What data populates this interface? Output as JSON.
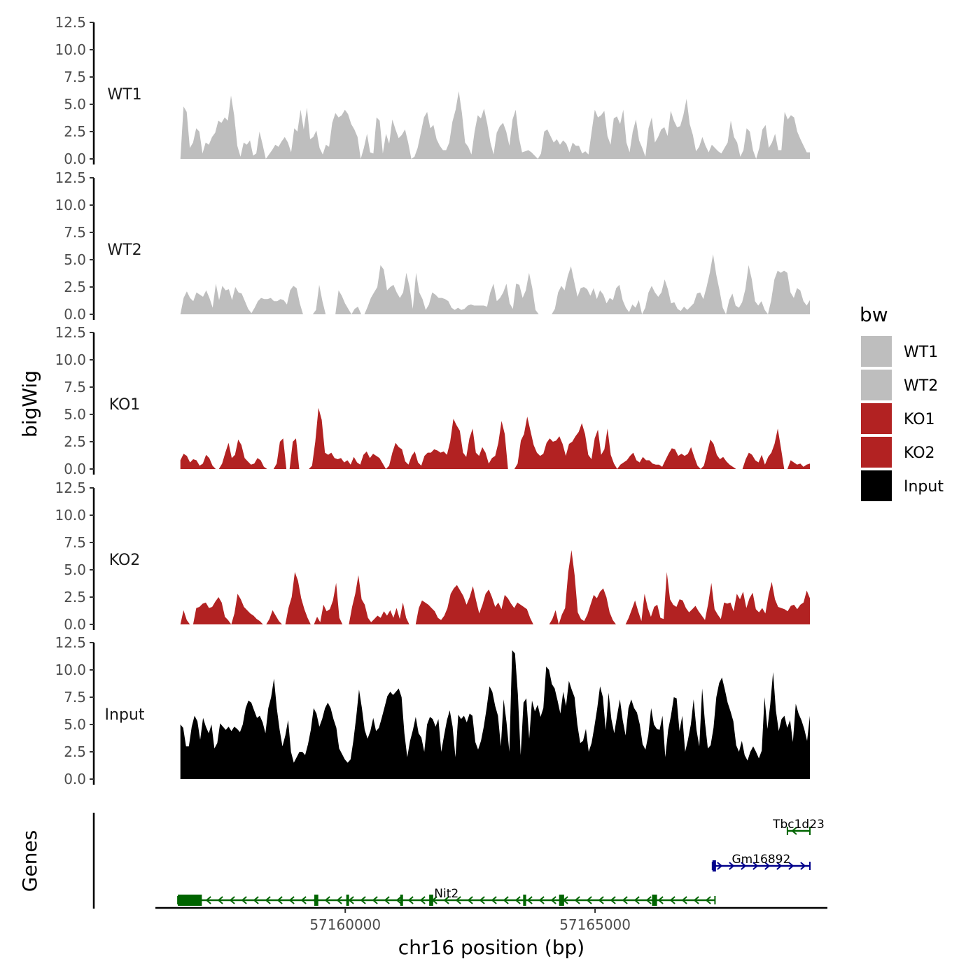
{
  "chart_data": {
    "type": "area",
    "y_axis_title": "bigWig",
    "x_axis_title": "chr16 position (bp)",
    "genes_axis_title": "Genes",
    "y_ticks": [
      "0.0",
      "2.5",
      "5.0",
      "7.5",
      "10.0",
      "12.5"
    ],
    "y_tick_values": [
      0,
      2.5,
      5,
      7.5,
      10,
      12.5
    ],
    "ylim": [
      0,
      12.5
    ],
    "xlim": [
      57156200,
      57169650
    ],
    "x_ticks": [
      {
        "value": 57160000,
        "label": "57160000"
      },
      {
        "value": 57165000,
        "label": "57165000"
      }
    ],
    "data_range": [
      57156700,
      57169300
    ],
    "legend": {
      "title": "bw",
      "entries": [
        {
          "label": "WT1",
          "color": "#bebebe"
        },
        {
          "label": "WT2",
          "color": "#bebebe"
        },
        {
          "label": "KO1",
          "color": "#b22222"
        },
        {
          "label": "KO2",
          "color": "#b22222"
        },
        {
          "label": "Input",
          "color": "#000000"
        }
      ]
    },
    "tracks": [
      {
        "name": "WT1",
        "color": "#bebebe",
        "values": [
          0,
          4.8,
          4.3,
          1,
          1.5,
          2.8,
          2.5,
          0.5,
          1.5,
          1.3,
          2,
          2.4,
          3.5,
          3.3,
          3.8,
          3.5,
          5.8,
          4,
          1.2,
          0.2,
          1.5,
          1.3,
          1.7,
          0.3,
          0.5,
          2.5,
          1.3,
          0,
          0.4,
          0.8,
          1.3,
          1.1,
          1.6,
          2,
          1.5,
          0.6,
          2.8,
          2.5,
          4.5,
          2.7,
          4.7,
          1.8,
          2,
          2.6,
          1,
          0.4,
          1.3,
          1.1,
          3.3,
          4.2,
          3.8,
          4,
          4.5,
          4.1,
          3.2,
          2.7,
          2,
          0,
          1,
          2.3,
          0.6,
          0.5,
          3.8,
          3.5,
          0.5,
          2.3,
          1.4,
          3.6,
          2.7,
          1.9,
          2.2,
          2.7,
          1.5,
          0,
          0.2,
          1,
          2.4,
          3.8,
          4.3,
          2.8,
          3.1,
          1.8,
          1.2,
          0.8,
          0.8,
          1.5,
          3.4,
          4.5,
          6.2,
          4.2,
          1.5,
          1.1,
          0.4,
          2.5,
          4,
          3.7,
          4.6,
          3.2,
          1.5,
          0.4,
          2.4,
          3,
          3.3,
          2.5,
          1.2,
          3.6,
          4.5,
          2,
          0.6,
          0.7,
          0.8,
          0.6,
          0.3,
          0,
          0.5,
          2.5,
          2.7,
          2.1,
          1.5,
          1.8,
          1.3,
          1.7,
          1.4,
          0.6,
          1.5,
          1.2,
          1.2,
          0.5,
          0.7,
          0.4,
          2.5,
          4.5,
          3.8,
          4,
          4.4,
          2.1,
          1.3,
          3.7,
          3.9,
          3.2,
          4.5,
          1.5,
          0.6,
          2.5,
          3.6,
          1.7,
          1,
          0.2,
          2.8,
          3.8,
          1.5,
          2,
          2.7,
          2.9,
          2.1,
          4.4,
          3.5,
          2.9,
          3,
          4,
          5.5,
          3.2,
          2.2,
          0.7,
          1.1,
          2,
          1.2,
          0.6,
          1.3,
          1,
          0.7,
          0.5,
          1,
          1.5,
          3.5,
          2,
          1.5,
          0.2,
          0.8,
          2.8,
          2.5,
          0.8,
          0,
          1,
          2.7,
          3.1,
          1,
          1.5,
          2.3,
          0.8,
          0.8,
          4.3,
          3.6,
          4,
          3.8,
          2.5,
          1.8,
          1.2,
          0.6,
          0.6
        ]
      },
      {
        "name": "WT2",
        "color": "#bebebe",
        "values": [
          0,
          1.5,
          2.1,
          1.5,
          1.2,
          2,
          1.8,
          1.6,
          2.2,
          1.5,
          0.6,
          2.8,
          1.3,
          2.6,
          2.2,
          2.3,
          1.3,
          2.5,
          2,
          1.9,
          1.2,
          0.5,
          0.1,
          0.6,
          1.2,
          1.5,
          1.4,
          1.4,
          1.5,
          1.2,
          1.2,
          1.4,
          1.3,
          0.9,
          2.2,
          2.6,
          2.4,
          1,
          0,
          0,
          0,
          0,
          0.4,
          2.7,
          1.2,
          0,
          0,
          0,
          0,
          2.2,
          1.7,
          1,
          0.5,
          0,
          0.5,
          0.7,
          0,
          0,
          0.7,
          1.5,
          2,
          2.5,
          4.5,
          4.1,
          2.2,
          2.5,
          2.7,
          2,
          1.5,
          2,
          3.8,
          2.5,
          0.5,
          3.8,
          2,
          1.4,
          0.4,
          0.9,
          2,
          1.8,
          1.5,
          1.5,
          1.4,
          1.2,
          0.6,
          0.4,
          0.6,
          0.4,
          0.5,
          0.8,
          0.9,
          0.8,
          0.8,
          0.8,
          0.8,
          0.7,
          2,
          2.8,
          1.2,
          1.5,
          2,
          2.8,
          1,
          0.5,
          2.8,
          2.7,
          1.5,
          2.2,
          3.8,
          2.4,
          0.4,
          0,
          0,
          0,
          0,
          0,
          0.5,
          2,
          2.6,
          2.2,
          3.5,
          4.4,
          3,
          1.6,
          2.4,
          2.5,
          2.3,
          1.7,
          2.4,
          1.4,
          2.2,
          1.8,
          1,
          1.5,
          1.3,
          2.4,
          2.7,
          1.3,
          0.6,
          0.2,
          0.9,
          0.6,
          1.3,
          0,
          0.6,
          2,
          2.6,
          2,
          1.6,
          2,
          3.2,
          2.3,
          1,
          1.1,
          0.5,
          0.3,
          0.7,
          0.4,
          0.7,
          1,
          1.9,
          2,
          1.4,
          2.5,
          3.8,
          5.5,
          3.6,
          2.2,
          0.6,
          0,
          1.3,
          1.9,
          0.8,
          0.6,
          1.1,
          2.3,
          4.5,
          3.2,
          1.2,
          0.8,
          1.2,
          0.4,
          0,
          1.3,
          3.2,
          4,
          3.8,
          4,
          3.8,
          2,
          1.5,
          2.4,
          2.2,
          1.2,
          0.8,
          1.3
        ]
      },
      {
        "name": "KO1",
        "color": "#b22222",
        "values": [
          0.8,
          1.4,
          1.2,
          0.6,
          0.9,
          0.8,
          0.3,
          0.5,
          1.3,
          1,
          0.3,
          0,
          0,
          0.5,
          1.5,
          2.4,
          1,
          1.3,
          2.7,
          2.2,
          1,
          0.7,
          0.4,
          0.5,
          1,
          0.8,
          0.2,
          0,
          0,
          0,
          0.5,
          2.5,
          2.8,
          0,
          0,
          2.5,
          2.8,
          0,
          0,
          0,
          0,
          0.3,
          2.5,
          5.6,
          4.5,
          1.5,
          1.3,
          1.5,
          1,
          0.9,
          1,
          0.6,
          0.8,
          0.4,
          1.1,
          0.6,
          0.4,
          1.3,
          1.6,
          1,
          1.4,
          1.2,
          1,
          0.5,
          0,
          0.3,
          1.5,
          2.4,
          2,
          1.8,
          0.7,
          0.4,
          1.2,
          1.6,
          0.6,
          0.3,
          1.2,
          1.5,
          1.5,
          1.8,
          1.7,
          1.5,
          1.6,
          1.3,
          2.5,
          4.6,
          4,
          3.5,
          1.5,
          1.1,
          2.8,
          3.7,
          1.5,
          1.2,
          2,
          1.5,
          0.5,
          1,
          1.2,
          2.4,
          4.4,
          3.2,
          0,
          0,
          0,
          0.5,
          2.6,
          3.2,
          4.8,
          3.5,
          2.2,
          1.5,
          1.2,
          1.4,
          2.4,
          2.8,
          2.5,
          2.6,
          3,
          2.3,
          1.2,
          2.3,
          2.5,
          3,
          3.4,
          4.2,
          3.2,
          1.3,
          0.9,
          2.8,
          3.6,
          1.3,
          1.8,
          3.7,
          1.3,
          0.5,
          0,
          0.4,
          0.6,
          0.8,
          1.2,
          1.5,
          0.8,
          0.6,
          1.1,
          0.8,
          0.8,
          0.5,
          0.4,
          0.4,
          0.2,
          0.8,
          1.4,
          1.9,
          1.8,
          1.2,
          1.4,
          1.2,
          1.4,
          2,
          1.1,
          0.3,
          0,
          0.3,
          1.5,
          2.7,
          2.3,
          1.3,
          0.9,
          1.1,
          0.7,
          0.4,
          0.2,
          0,
          0,
          0,
          0.9,
          1.5,
          1.3,
          0.8,
          0.6,
          1.3,
          0.4,
          1.1,
          1.5,
          2.3,
          3.7,
          1.9,
          0,
          0,
          0.8,
          0.6,
          0.4,
          0.5,
          0.2,
          0.4,
          0.5
        ]
      },
      {
        "name": "KO2",
        "color": "#b22222",
        "values": [
          0,
          1.3,
          0.4,
          0,
          0,
          1.5,
          1.6,
          1.9,
          2,
          1.5,
          1.6,
          2.1,
          2.5,
          2,
          0.7,
          0.4,
          0,
          1,
          2.8,
          2.3,
          1.6,
          1.3,
          1,
          0.8,
          0.5,
          0.3,
          0,
          0,
          0.5,
          1.3,
          0.8,
          0.3,
          0,
          0,
          1.5,
          2.5,
          4.8,
          4,
          2.4,
          1.4,
          0.6,
          0,
          0,
          0.7,
          0.2,
          1.8,
          1.2,
          1.4,
          2.2,
          3.8,
          0.6,
          0,
          0,
          0,
          1.6,
          2.8,
          4.5,
          2.3,
          1.8,
          0.6,
          0.2,
          0.5,
          0.8,
          0.6,
          1.2,
          0.8,
          1.3,
          0.6,
          1.5,
          0.5,
          2,
          0.6,
          0,
          0,
          0,
          1.5,
          2.2,
          2,
          1.8,
          1.5,
          1.2,
          0.6,
          0.4,
          0.8,
          1.5,
          2.8,
          3.3,
          3.6,
          3.1,
          2.6,
          1.8,
          2.5,
          3.5,
          2.2,
          1,
          1.8,
          2.8,
          3.2,
          2.5,
          1.6,
          2,
          1.4,
          2.7,
          2.4,
          1.9,
          1.5,
          2,
          1.8,
          1.6,
          1.4,
          0.6,
          0,
          0,
          0,
          0,
          0,
          0,
          0.5,
          1.3,
          0,
          0.9,
          1.5,
          4.8,
          6.8,
          4.5,
          1.1,
          0.5,
          0.3,
          0.9,
          1.8,
          2.7,
          2.4,
          3,
          3.3,
          2.5,
          1.1,
          0.4,
          0,
          0,
          0,
          0,
          0.6,
          1.4,
          2.2,
          1.2,
          0.3,
          2.8,
          1.5,
          0.7,
          1.6,
          1.8,
          0.6,
          0.5,
          4.8,
          2.3,
          1.8,
          1.6,
          2.3,
          2.2,
          1.5,
          1.1,
          1.4,
          1.7,
          1.2,
          0.8,
          0.4,
          1.9,
          3.8,
          1.4,
          0.9,
          0.5,
          2,
          1.9,
          2,
          1.2,
          2.8,
          2.3,
          3,
          1.5,
          2.4,
          2.9,
          1.4,
          1.1,
          1.5,
          1,
          2.7,
          3.9,
          2.3,
          1.6,
          1.5,
          1.4,
          1.2,
          1.7,
          1.8,
          1.4,
          1.8,
          2,
          3.1,
          2.4
        ]
      },
      {
        "name": "Input",
        "color": "#000000",
        "values": [
          5,
          4.7,
          3,
          3,
          4.8,
          5.8,
          5.3,
          3.6,
          5.6,
          4.8,
          4.2,
          5,
          2.8,
          3.3,
          5.1,
          4.8,
          4.5,
          4.8,
          4.4,
          4.8,
          4.6,
          4.3,
          5,
          6.5,
          7.2,
          7,
          6.3,
          5.6,
          5.8,
          5.2,
          4.2,
          6.5,
          7.5,
          9.2,
          6.5,
          4.5,
          3,
          4,
          5.4,
          2.5,
          1.5,
          2,
          2.5,
          2.5,
          2.2,
          3.2,
          4.5,
          6.5,
          6,
          4.8,
          5.5,
          6.5,
          7,
          6.5,
          5.5,
          4.7,
          2.8,
          2.3,
          1.8,
          1.5,
          1.8,
          3.5,
          5.7,
          8.2,
          6.5,
          4.5,
          3.7,
          4.4,
          5.6,
          4.4,
          4.7,
          5.6,
          6.6,
          7.6,
          8,
          7.7,
          8,
          8.3,
          7.5,
          4.2,
          2,
          3.5,
          4.5,
          5.7,
          4.2,
          3.8,
          2.5,
          5,
          5.7,
          5.5,
          4.8,
          5.5,
          2.5,
          4,
          5.4,
          6.3,
          4.8,
          2,
          5.9,
          5.5,
          5.8,
          5.2,
          6,
          5.8,
          3.4,
          2.7,
          3.5,
          4.8,
          6.5,
          8.5,
          8,
          6.7,
          5.8,
          3,
          7.3,
          5.2,
          2.5,
          11.8,
          11.5,
          7.8,
          2.2,
          7,
          7.4,
          3.7,
          7.2,
          6.2,
          6.8,
          5.7,
          6.5,
          10.3,
          10,
          8.7,
          8.3,
          7.2,
          6,
          8,
          6.7,
          9,
          8.2,
          7.5,
          5,
          3.3,
          3.5,
          4.6,
          2.5,
          3.3,
          4.8,
          6.5,
          8.5,
          7.5,
          4.5,
          7.9,
          5.5,
          4.2,
          5.8,
          7.3,
          5.4,
          4,
          6.5,
          7.3,
          6.5,
          6.1,
          5,
          3.2,
          2.7,
          4,
          6.5,
          5,
          4.6,
          4.5,
          5.8,
          2,
          4.5,
          5.8,
          7.5,
          7.4,
          4.4,
          5.8,
          2.5,
          3.6,
          5,
          7.3,
          4.5,
          3,
          8.3,
          5.2,
          2.8,
          3.1,
          4.7,
          7.5,
          8.8,
          9.3,
          8.2,
          7,
          6.2,
          5.3,
          3.1,
          2.5,
          3.5,
          2.2,
          1.7,
          2.5,
          3,
          2.5,
          1.9,
          2.6,
          7.5,
          4.6,
          6.8,
          9.8,
          6.3,
          4.4,
          5.5,
          5.8,
          4.7,
          5.4,
          3.4,
          6.9,
          6,
          5.4,
          4.6,
          3.5,
          5.8
        ]
      }
    ],
    "genes": [
      {
        "name": "Tbc1d23",
        "color": "#006400",
        "strand": "-",
        "start": 57168850,
        "end": 57169300,
        "exons": [],
        "row": 1
      },
      {
        "name": "Gm16892",
        "color": "#00008b",
        "strand": "+",
        "start": 57167350,
        "end": 57169300,
        "exons": [
          [
            57167350,
            57167420
          ]
        ],
        "row": 2
      },
      {
        "name": "Nit2",
        "color": "#006400",
        "strand": "-",
        "start": 57156650,
        "end": 57167400,
        "exons": [
          [
            57156650,
            57157130
          ],
          [
            57159380,
            57159460
          ],
          [
            57160020,
            57160070
          ],
          [
            57161100,
            57161150
          ],
          [
            57161680,
            57161760
          ],
          [
            57163560,
            57163620
          ],
          [
            57164280,
            57164380
          ],
          [
            57166140,
            57166240
          ]
        ],
        "row": 3
      }
    ]
  }
}
